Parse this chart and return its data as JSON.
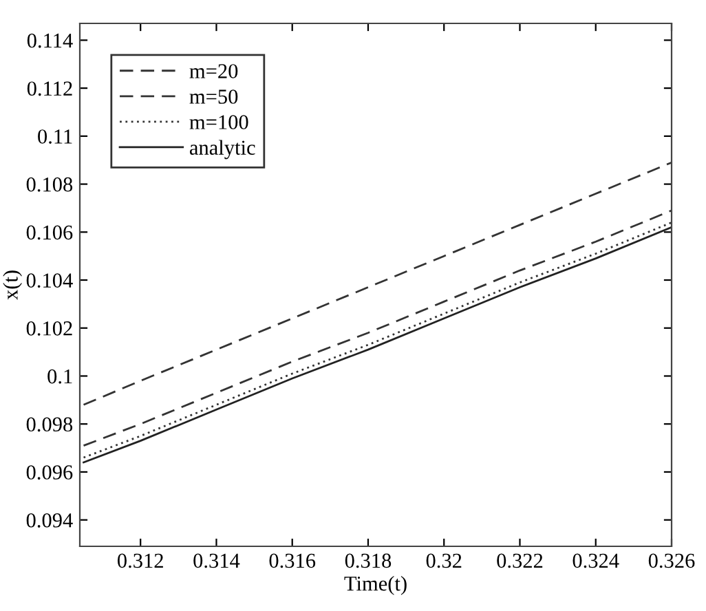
{
  "chart_data": {
    "type": "line",
    "xlabel": "Time(t)",
    "ylabel": "x(t)",
    "xlim": [
      0.3104,
      0.326
    ],
    "ylim": [
      0.0929,
      0.1147
    ],
    "xticks": [
      0.312,
      0.314,
      0.316,
      0.318,
      0.32,
      0.322,
      0.324,
      0.326
    ],
    "yticks": [
      0.094,
      0.096,
      0.098,
      0.1,
      0.102,
      0.104,
      0.106,
      0.108,
      0.11,
      0.112,
      0.114
    ],
    "grid": false,
    "legend": "top left",
    "x": [
      0.3105,
      0.312,
      0.314,
      0.316,
      0.318,
      0.32,
      0.322,
      0.324,
      0.326
    ],
    "series": [
      {
        "name": "m=20",
        "color": "#333333",
        "line_style": "dashed",
        "values": [
          0.0988,
          0.0998,
          0.1011,
          0.1024,
          0.1037,
          0.105,
          0.1063,
          0.1076,
          0.1089
        ]
      },
      {
        "name": "m=50",
        "color": "#333333",
        "line_style": "dashed",
        "values": [
          0.0971,
          0.098,
          0.0993,
          0.1006,
          0.1018,
          0.1031,
          0.1044,
          0.1056,
          0.1069
        ]
      },
      {
        "name": "m=100",
        "color": "#333333",
        "line_style": "dotted",
        "values": [
          0.0966,
          0.0975,
          0.0988,
          0.1001,
          0.1013,
          0.1026,
          0.1039,
          0.1051,
          0.1064
        ]
      },
      {
        "name": "analytic",
        "color": "#222222",
        "line_style": "solid",
        "values": [
          0.0964,
          0.0973,
          0.0986,
          0.0999,
          0.1011,
          0.1024,
          0.1037,
          0.1049,
          0.1062
        ]
      }
    ]
  }
}
